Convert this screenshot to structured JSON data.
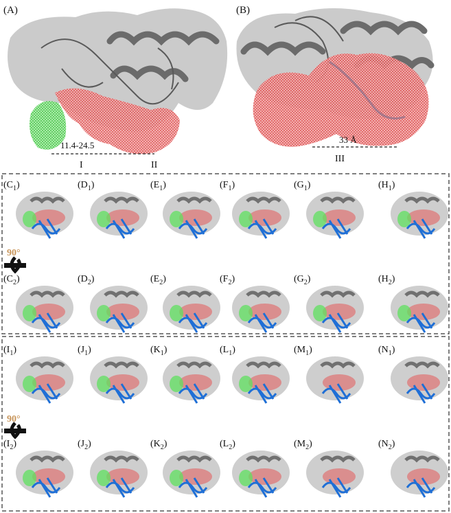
{
  "top_panels": {
    "A": {
      "label": "(A)",
      "measure": "11.4-24.5",
      "site_left": "I",
      "site_right": "II"
    },
    "B": {
      "label": "(B)",
      "measure": "33 Å",
      "site": "III"
    }
  },
  "rotation": {
    "label": "90°"
  },
  "row_labels": {
    "r1": [
      "C",
      "D",
      "E",
      "F",
      "G",
      "H"
    ],
    "r2": [
      "C",
      "D",
      "E",
      "F",
      "G",
      "H"
    ],
    "r3": [
      "I",
      "J",
      "K",
      "L",
      "M",
      "N"
    ],
    "r4": [
      "I",
      "J",
      "K",
      "L",
      "M",
      "N"
    ]
  },
  "row_subscripts": {
    "r1": "1",
    "r2": "2",
    "r3": "1",
    "r4": "2"
  },
  "colors": {
    "surface": "#b9b9b9",
    "helix": "#707070",
    "site_green": "#5fe05f",
    "site_red": "#e35a5a",
    "partner_blue": "#1f6fd6",
    "rotation_text": "#c8955a"
  }
}
